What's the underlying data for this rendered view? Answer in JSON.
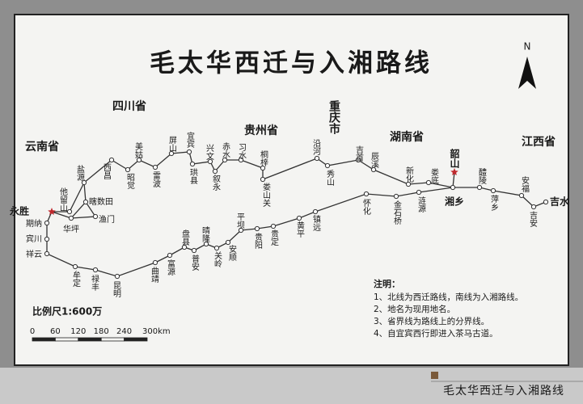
{
  "title": "毛太华西迁与入湘路线",
  "north": "N",
  "provinces": [
    "四川省",
    "云南省",
    "贵州省",
    "重庆市",
    "湖南省",
    "江西省"
  ],
  "places": [
    "永胜",
    "他留山",
    "华坪",
    "盐源",
    "瞎数田",
    "渔门",
    "西昌",
    "昭觉",
    "美姑",
    "雷波",
    "屏山",
    "宜宾",
    "珙县",
    "兴文",
    "叙永",
    "赤水",
    "习水",
    "桐梓",
    "娄山关",
    "沿河",
    "秀山",
    "吉首",
    "辰溪",
    "新化",
    "娄底",
    "韶山",
    "湘乡",
    "期纳",
    "宾川",
    "祥云",
    "牟定",
    "禄丰",
    "昆明",
    "曲靖",
    "富源",
    "盘县",
    "普安",
    "晴隆",
    "关岭",
    "安顺",
    "平坝",
    "贵阳",
    "贵定",
    "黄平",
    "镇远",
    "怀化",
    "金石桥",
    "涟源",
    "醴陵",
    "萍乡",
    "安福",
    "吉安",
    "吉水"
  ],
  "scale": {
    "title": "比例尺1:600万",
    "ticks": [
      "0",
      "60",
      "120",
      "180",
      "240",
      "300km"
    ]
  },
  "notes": {
    "heading": "注明：",
    "items": [
      "1、北线为西迁路线，南线为入湘路线。",
      "2、地名为现用地名。",
      "3、省界线为路线上的分界线。",
      "4、自宜宾西行即进入茶马古道。"
    ]
  },
  "caption": "毛太华西迁与入湘路线"
}
